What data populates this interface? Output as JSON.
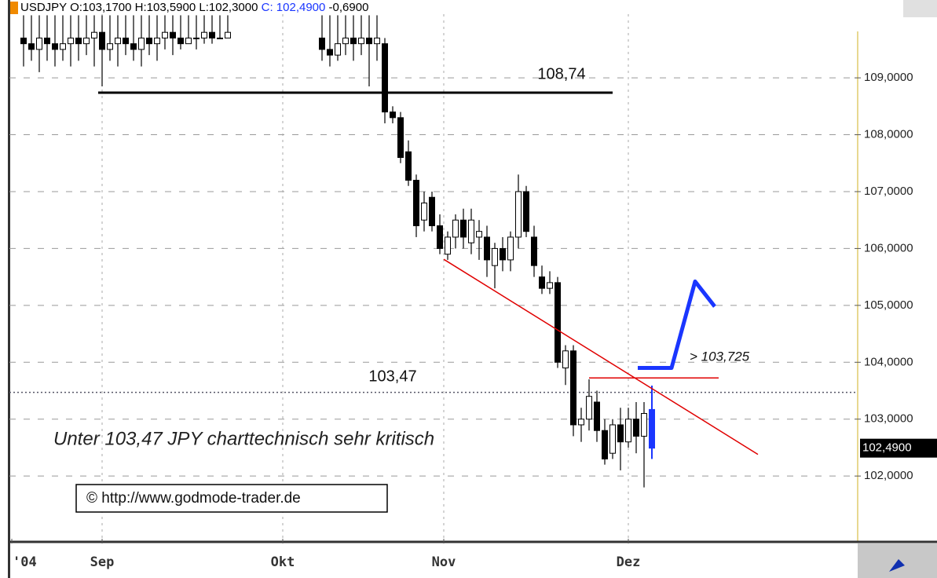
{
  "chart_data": {
    "type": "candlestick",
    "title_parts": [
      "USDJPY O:103,1700 H:103,5900 L:102,3000",
      "C: 102,4900",
      "-0,6900"
    ],
    "x": [
      0,
      1,
      2,
      3,
      4,
      5,
      6,
      7,
      8,
      9,
      10,
      11,
      12,
      13,
      14,
      15,
      16,
      17,
      18,
      19,
      20,
      21,
      22,
      23,
      24,
      25,
      26,
      27,
      28,
      29,
      30,
      31,
      32,
      33,
      34,
      35,
      36,
      37,
      38,
      39,
      40,
      41,
      42,
      43,
      44,
      45,
      46,
      47,
      48,
      49,
      50,
      51,
      52,
      53,
      54,
      55,
      56,
      57,
      58,
      59,
      60,
      61,
      62,
      63,
      64,
      65,
      66,
      67,
      68,
      69,
      70,
      71,
      72,
      73,
      74,
      75,
      76,
      77,
      78,
      79,
      80
    ],
    "open": [
      109.7,
      109.6,
      109.5,
      109.7,
      109.6,
      109.5,
      109.6,
      109.7,
      109.6,
      109.7,
      109.8,
      109.5,
      109.6,
      109.7,
      109.6,
      109.5,
      109.7,
      109.6,
      109.7,
      109.8,
      109.7,
      109.6,
      109.7,
      109.7,
      109.8,
      109.7,
      109.7,
      null,
      null,
      null,
      null,
      null,
      null,
      null,
      null,
      null,
      null,
      null,
      109.7,
      109.5,
      109.4,
      109.6,
      109.7,
      109.6,
      109.7,
      109.6,
      109.6,
      108.4,
      108.3,
      107.7,
      107.2,
      106.5,
      106.9,
      106.4,
      105.9,
      106.2,
      106.5,
      106.1,
      106.2,
      106.2,
      105.7,
      106.0,
      105.8,
      106.2,
      107.0,
      106.2,
      105.5,
      105.3,
      105.4,
      103.9,
      104.2,
      102.9,
      103.0,
      103.3,
      102.8,
      102.4,
      102.9,
      102.6,
      103.0,
      102.7,
      103.17
    ],
    "high": [
      110.1,
      110.1,
      110.1,
      110.1,
      110.1,
      110.1,
      110.1,
      110.1,
      110.1,
      110.1,
      110.1,
      110.1,
      110.1,
      110.1,
      110.1,
      110.1,
      110.1,
      110.1,
      110.1,
      110.1,
      110.1,
      110.1,
      110.1,
      110.1,
      110.1,
      110.1,
      110.1,
      null,
      null,
      null,
      null,
      null,
      null,
      null,
      null,
      null,
      null,
      null,
      110.1,
      110.1,
      110.1,
      110.1,
      110.1,
      110.1,
      110.1,
      110.1,
      109.7,
      108.5,
      108.4,
      107.9,
      107.3,
      107.0,
      107.0,
      106.6,
      106.3,
      106.6,
      106.7,
      106.7,
      106.5,
      106.4,
      106.1,
      106.2,
      106.3,
      107.3,
      107.1,
      106.4,
      105.7,
      105.6,
      105.5,
      104.3,
      104.3,
      103.2,
      103.7,
      103.5,
      103.0,
      103.0,
      103.2,
      103.2,
      103.3,
      103.3,
      103.59
    ],
    "low": [
      109.2,
      109.3,
      109.1,
      109.3,
      109.2,
      109.3,
      109.2,
      109.3,
      109.4,
      109.2,
      108.85,
      109.3,
      109.2,
      109.4,
      109.3,
      109.2,
      109.4,
      109.3,
      109.5,
      109.4,
      109.5,
      109.6,
      109.5,
      109.6,
      109.6,
      109.7,
      109.7,
      null,
      null,
      null,
      null,
      null,
      null,
      null,
      null,
      null,
      null,
      null,
      109.3,
      109.2,
      109.3,
      109.4,
      109.3,
      109.4,
      108.85,
      109.3,
      108.2,
      108.2,
      107.5,
      107.1,
      106.2,
      106.3,
      106.3,
      105.9,
      105.8,
      106.0,
      106.0,
      105.9,
      105.8,
      105.5,
      105.3,
      105.6,
      105.6,
      106.0,
      106.2,
      105.5,
      105.2,
      105.2,
      103.9,
      103.6,
      102.7,
      102.6,
      102.8,
      102.6,
      102.2,
      102.3,
      102.1,
      102.5,
      102.4,
      101.8,
      102.3
    ],
    "close": [
      109.6,
      109.5,
      109.7,
      109.6,
      109.5,
      109.6,
      109.7,
      109.6,
      109.7,
      109.8,
      109.5,
      109.6,
      109.7,
      109.6,
      109.5,
      109.7,
      109.6,
      109.7,
      109.8,
      109.7,
      109.6,
      109.7,
      109.7,
      109.8,
      109.7,
      109.7,
      109.8,
      null,
      null,
      null,
      null,
      null,
      null,
      null,
      null,
      null,
      null,
      null,
      109.5,
      109.4,
      109.6,
      109.7,
      109.6,
      109.7,
      109.6,
      109.7,
      108.4,
      108.3,
      107.6,
      107.2,
      106.4,
      106.8,
      106.4,
      106.0,
      106.2,
      106.5,
      106.2,
      106.5,
      106.3,
      105.8,
      106.0,
      105.8,
      106.2,
      107.0,
      106.3,
      105.7,
      105.3,
      105.4,
      104.0,
      104.2,
      102.9,
      103.0,
      103.4,
      102.8,
      102.3,
      102.9,
      102.6,
      103.0,
      102.7,
      103.1,
      102.49
    ],
    "colors": {
      "up": "#ffffff",
      "down": "#000000",
      "last": "#1a36ff"
    },
    "xlim": [
      -1.8,
      106
    ],
    "ylim": [
      100.87,
      110.12
    ],
    "xticks": [
      {
        "value": -1.5,
        "label": "'04"
      },
      {
        "value": 10,
        "label": "Sep"
      },
      {
        "value": 33,
        "label": "Okt"
      },
      {
        "value": 53.5,
        "label": "Nov"
      },
      {
        "value": 77,
        "label": "Dez"
      }
    ],
    "yticks": [
      {
        "value": 102,
        "label": "102,0000"
      },
      {
        "value": 103,
        "label": "103,0000"
      },
      {
        "value": 104,
        "label": "104,0000"
      },
      {
        "value": 105,
        "label": "105,0000"
      },
      {
        "value": 106,
        "label": "106,0000"
      },
      {
        "value": 107,
        "label": "107,0000"
      },
      {
        "value": 108,
        "label": "108,0000"
      },
      {
        "value": 109,
        "label": "109,0000"
      }
    ],
    "grid": true,
    "last_price": {
      "value": 102.49,
      "label": "102,4900"
    },
    "resistance": {
      "value": 108.74,
      "label": "108,74",
      "x": [
        9.5,
        75
      ]
    },
    "support": {
      "value": 103.47,
      "label": "103,47"
    },
    "trigger": {
      "value": 103.725,
      "label": "> 103,725",
      "x": [
        72,
        88.5
      ]
    },
    "trendline": {
      "x": [
        53.5,
        93.5
      ],
      "values": [
        105.81,
        102.38
      ]
    },
    "projection": {
      "x": [
        78.2,
        82.5,
        85.5,
        88
      ],
      "values": [
        103.9,
        103.9,
        105.42,
        104.98
      ]
    },
    "comment": "Unter 103,47 JPY charttechnisch sehr kritisch",
    "source": "© http://www.godmode-trader.de"
  }
}
